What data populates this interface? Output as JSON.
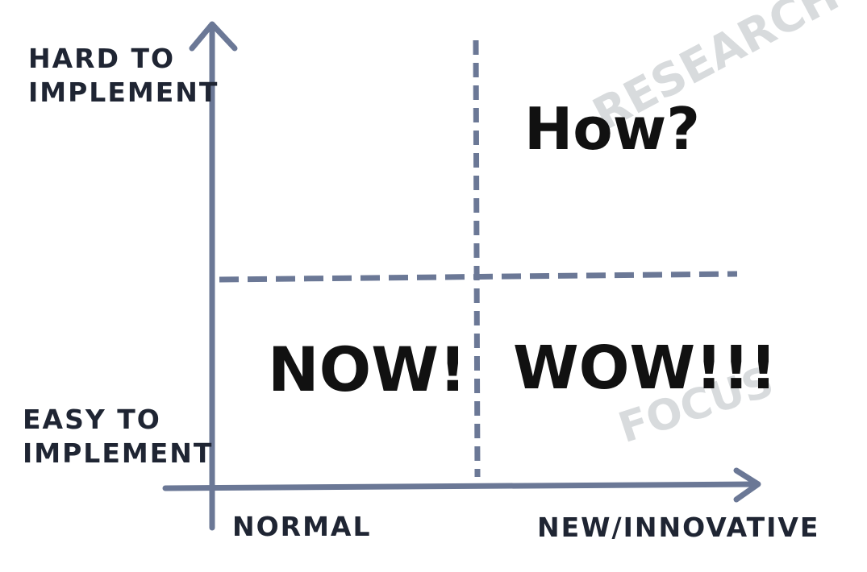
{
  "colors": {
    "axis": "#6b7896",
    "text": "#1f2533",
    "quadrant_text": "#111111",
    "watermark": "#d8dbdd"
  },
  "axes": {
    "y_top_label": [
      "HARD TO",
      "IMPLEMENT"
    ],
    "y_bottom_label": [
      "EASY TO",
      "IMPLEMENT"
    ],
    "x_left_label": "NORMAL",
    "x_right_label": "NEW/INNOVATIVE"
  },
  "quadrants": {
    "top_right": "How?",
    "bottom_left": "NOW!",
    "bottom_right": "WOW!!!"
  },
  "watermarks": {
    "top_right": "RESEARCH",
    "bottom_right": "FOCUS"
  }
}
